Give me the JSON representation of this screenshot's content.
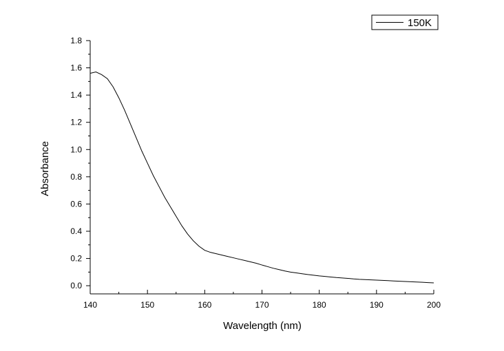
{
  "chart_data": {
    "type": "line",
    "title": "",
    "xlabel": "Wavelength (nm)",
    "ylabel": "Absorbance",
    "xlim": [
      140,
      200
    ],
    "ylim": [
      -0.06,
      1.8
    ],
    "x_ticks": [
      "140",
      "150",
      "160",
      "170",
      "180",
      "190",
      "200"
    ],
    "y_ticks": [
      "0.0",
      "0.2",
      "0.4",
      "0.6",
      "0.8",
      "1.0",
      "1.2",
      "1.4",
      "1.6",
      "1.8"
    ],
    "grid": false,
    "legend_position": "top-right",
    "series": [
      {
        "name": "150K",
        "color": "#000000",
        "x": [
          140,
          141,
          142,
          143,
          144,
          145,
          146,
          147,
          148,
          149,
          150,
          151,
          152,
          153,
          154,
          155,
          156,
          157,
          158,
          159,
          160,
          161,
          162,
          163,
          164,
          165,
          166,
          167,
          168,
          169,
          170,
          171,
          172,
          173,
          174,
          175,
          176,
          177,
          178,
          179,
          180,
          181,
          182,
          183,
          184,
          185,
          186,
          187,
          188,
          189,
          190,
          191,
          192,
          193,
          194,
          195,
          196,
          197,
          198,
          199,
          200
        ],
        "y": [
          1.56,
          1.57,
          1.55,
          1.52,
          1.46,
          1.38,
          1.29,
          1.19,
          1.09,
          0.99,
          0.9,
          0.81,
          0.73,
          0.65,
          0.58,
          0.51,
          0.44,
          0.38,
          0.33,
          0.29,
          0.26,
          0.245,
          0.235,
          0.225,
          0.215,
          0.205,
          0.195,
          0.185,
          0.175,
          0.165,
          0.152,
          0.14,
          0.128,
          0.118,
          0.108,
          0.1,
          0.094,
          0.088,
          0.082,
          0.077,
          0.072,
          0.068,
          0.064,
          0.06,
          0.057,
          0.054,
          0.05,
          0.047,
          0.045,
          0.043,
          0.041,
          0.039,
          0.037,
          0.035,
          0.033,
          0.031,
          0.029,
          0.027,
          0.025,
          0.023,
          0.021
        ]
      }
    ]
  }
}
